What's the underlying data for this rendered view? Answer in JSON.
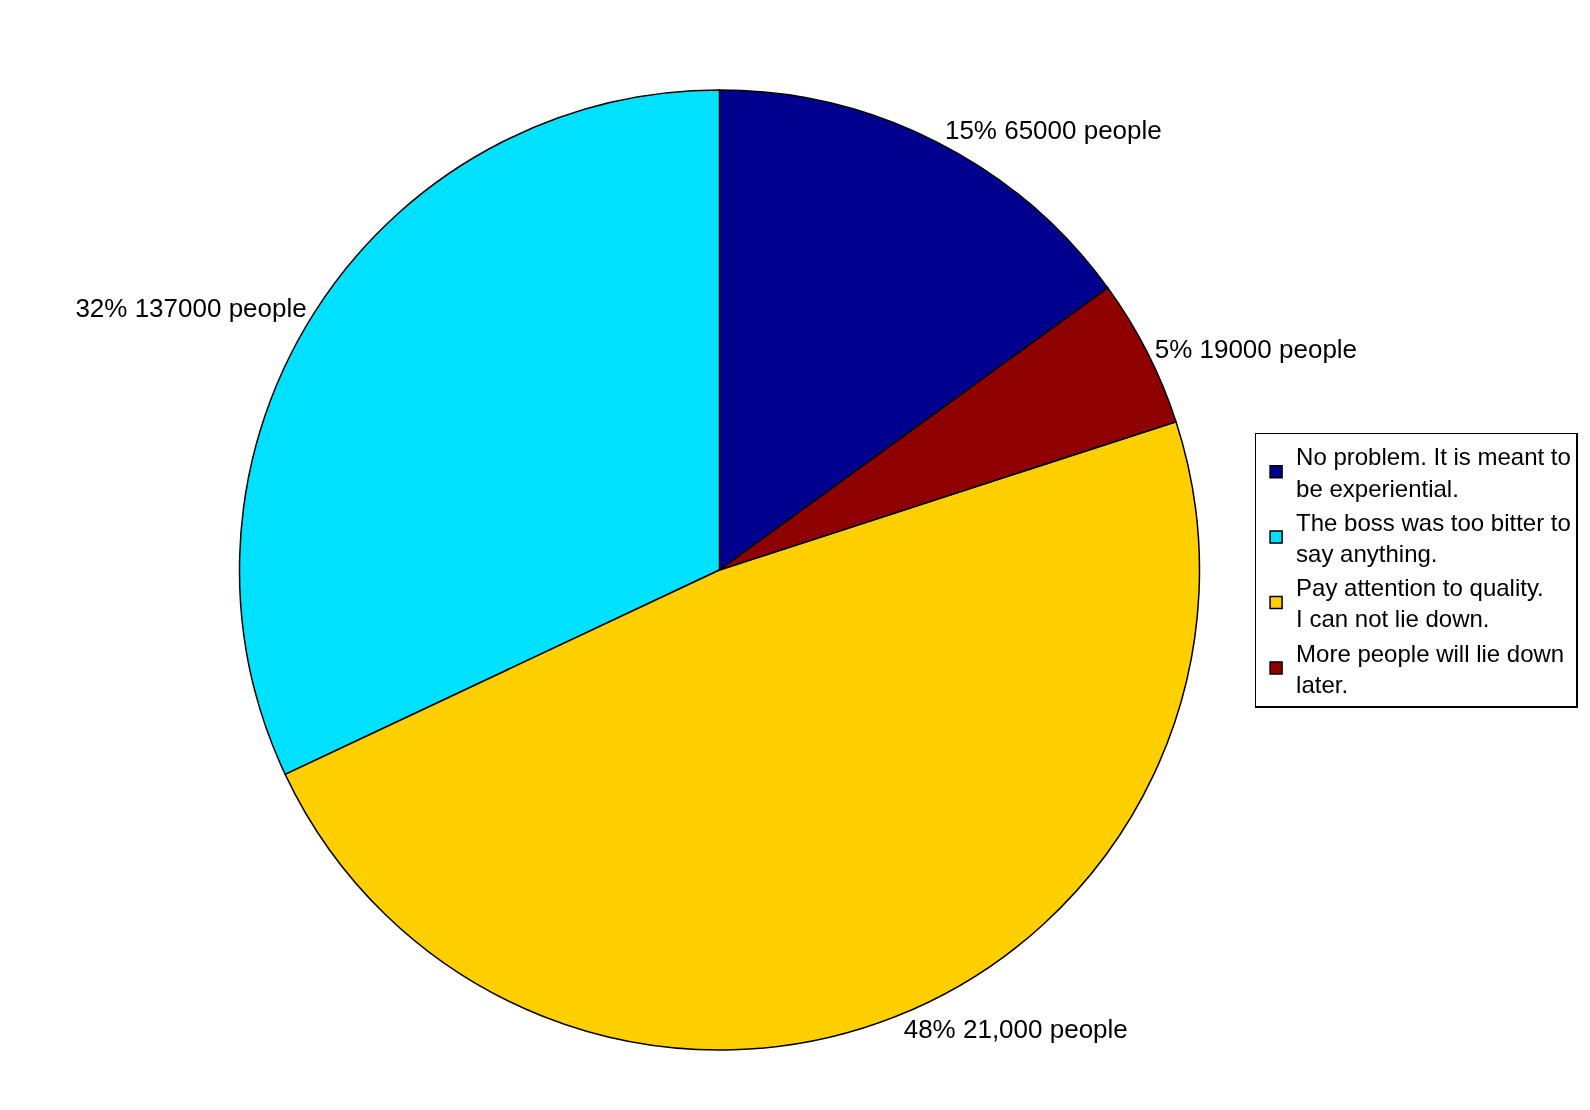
{
  "chart_data": {
    "type": "pie",
    "categories": [
      "No problem. It is meant to be experiential.",
      "The boss was too bitter to say anything.",
      "Pay attention to quality. I can not lie down.",
      "More people will lie down later."
    ],
    "values": [
      15,
      32,
      48,
      5
    ],
    "value_labels": [
      "15% 65000 people",
      "32% 137000 people",
      "48% 21,000 people",
      "5% 19000 people"
    ],
    "colors": [
      "#00008f",
      "#00e0ff",
      "#ffcf00",
      "#8f0000"
    ],
    "legend": "right"
  }
}
